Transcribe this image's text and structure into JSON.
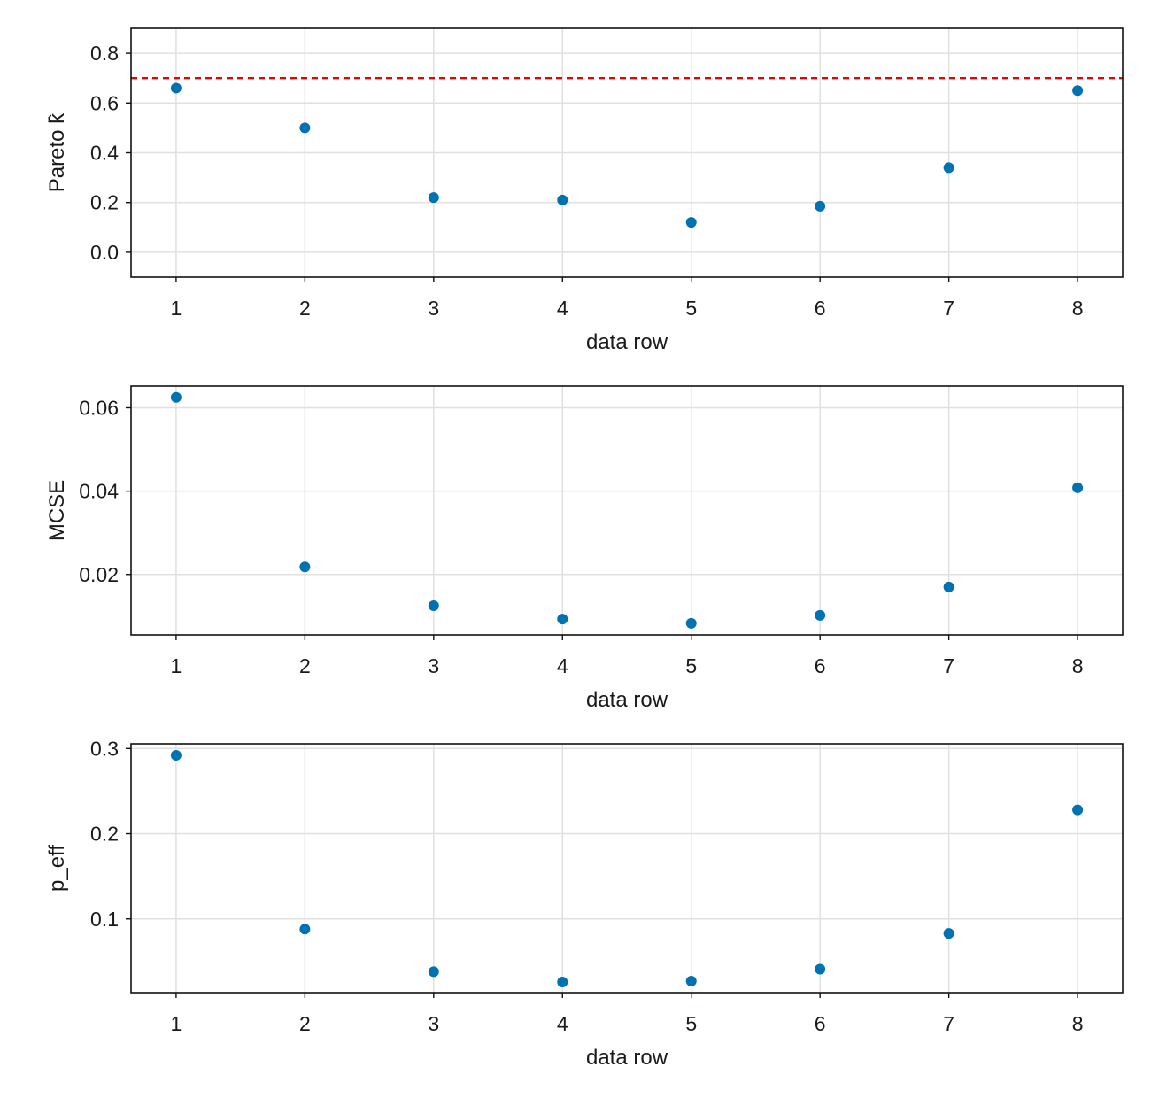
{
  "chart_data": [
    {
      "type": "scatter",
      "xlabel": "data row",
      "ylabel": "Pareto k̂",
      "x": [
        1,
        2,
        3,
        4,
        5,
        6,
        7,
        8
      ],
      "y": [
        0.66,
        0.5,
        0.22,
        0.21,
        0.12,
        0.185,
        0.34,
        0.65
      ],
      "xlim": [
        0.65,
        8.35
      ],
      "ylim": [
        -0.1,
        0.9
      ],
      "xticks": [
        1,
        2,
        3,
        4,
        5,
        6,
        7,
        8
      ],
      "yticks": [
        0.0,
        0.2,
        0.4,
        0.6,
        0.8
      ],
      "ytick_labels": [
        "0.0",
        "0.2",
        "0.4",
        "0.6",
        "0.8"
      ],
      "reference_line": {
        "y": 0.7,
        "style": "dashed",
        "color": "#e8000b"
      },
      "grid": true,
      "marker_color": "#0072b2"
    },
    {
      "type": "scatter",
      "xlabel": "data row",
      "ylabel": "MCSE",
      "x": [
        1,
        2,
        3,
        4,
        5,
        6,
        7,
        8
      ],
      "y": [
        0.0625,
        0.0218,
        0.0125,
        0.0093,
        0.0083,
        0.0102,
        0.017,
        0.0408
      ],
      "xlim": [
        0.65,
        8.35
      ],
      "ylim": [
        0.0055,
        0.0652
      ],
      "xticks": [
        1,
        2,
        3,
        4,
        5,
        6,
        7,
        8
      ],
      "yticks": [
        0.02,
        0.04,
        0.06
      ],
      "ytick_labels": [
        "0.02",
        "0.04",
        "0.06"
      ],
      "grid": true,
      "marker_color": "#0072b2"
    },
    {
      "type": "scatter",
      "xlabel": "data row",
      "ylabel": "p_eff",
      "x": [
        1,
        2,
        3,
        4,
        5,
        6,
        7,
        8
      ],
      "y": [
        0.292,
        0.088,
        0.038,
        0.026,
        0.027,
        0.041,
        0.083,
        0.228
      ],
      "xlim": [
        0.65,
        8.35
      ],
      "ylim": [
        0.0135,
        0.3055
      ],
      "xticks": [
        1,
        2,
        3,
        4,
        5,
        6,
        7,
        8
      ],
      "yticks": [
        0.1,
        0.2,
        0.3
      ],
      "ytick_labels": [
        "0.1",
        "0.2",
        "0.3"
      ],
      "grid": true,
      "marker_color": "#0072b2"
    }
  ]
}
